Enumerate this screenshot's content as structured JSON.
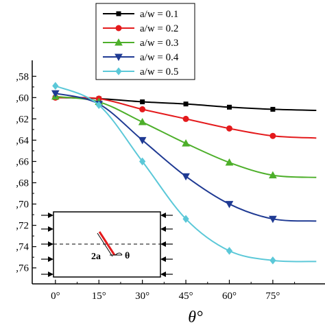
{
  "chart_data": {
    "type": "line",
    "xlabel": "θ°",
    "ylabel": "",
    "x": [
      0,
      15,
      30,
      45,
      60,
      75,
      90
    ],
    "x_tick_labels": [
      "0°",
      "15°",
      "30°",
      "45°",
      "60°",
      "75°"
    ],
    "y_tick_labels": [
      ",58",
      ",60",
      ",62",
      ",64",
      ",66",
      ",68",
      ",70",
      ",72",
      ",74",
      ",76"
    ],
    "y_ticks": [
      -1.58,
      -1.6,
      -1.62,
      -1.64,
      -1.66,
      -1.68,
      -1.7,
      -1.72,
      -1.74,
      -1.76
    ],
    "xlim": [
      -8,
      93
    ],
    "ylim": [
      -1.775,
      -1.565
    ],
    "legend_position": "top-center",
    "grid": false,
    "series": [
      {
        "name": "a/w = 0.1",
        "color": "#000000",
        "marker": "square",
        "values": [
          -1.6,
          -1.601,
          -1.604,
          -1.606,
          -1.609,
          -1.611,
          -1.612
        ]
      },
      {
        "name": "a/w = 0.2",
        "color": "#e41a1c",
        "marker": "circle",
        "values": [
          -1.6,
          -1.601,
          -1.611,
          -1.62,
          -1.629,
          -1.636,
          -1.638
        ]
      },
      {
        "name": "a/w = 0.3",
        "color": "#4daf2a",
        "marker": "triangle-up",
        "values": [
          -1.599,
          -1.604,
          -1.623,
          -1.643,
          -1.661,
          -1.673,
          -1.675
        ]
      },
      {
        "name": "a/w = 0.4",
        "color": "#1f3a93",
        "marker": "triangle-down",
        "values": [
          -1.596,
          -1.606,
          -1.64,
          -1.674,
          -1.7,
          -1.714,
          -1.716
        ]
      },
      {
        "name": "a/w = 0.5",
        "color": "#5bc8d8",
        "marker": "diamond",
        "values": [
          -1.589,
          -1.607,
          -1.66,
          -1.714,
          -1.744,
          -1.753,
          -1.754
        ]
      }
    ],
    "inset": {
      "crack_length_label": "2a",
      "angle_label": "θ"
    }
  }
}
